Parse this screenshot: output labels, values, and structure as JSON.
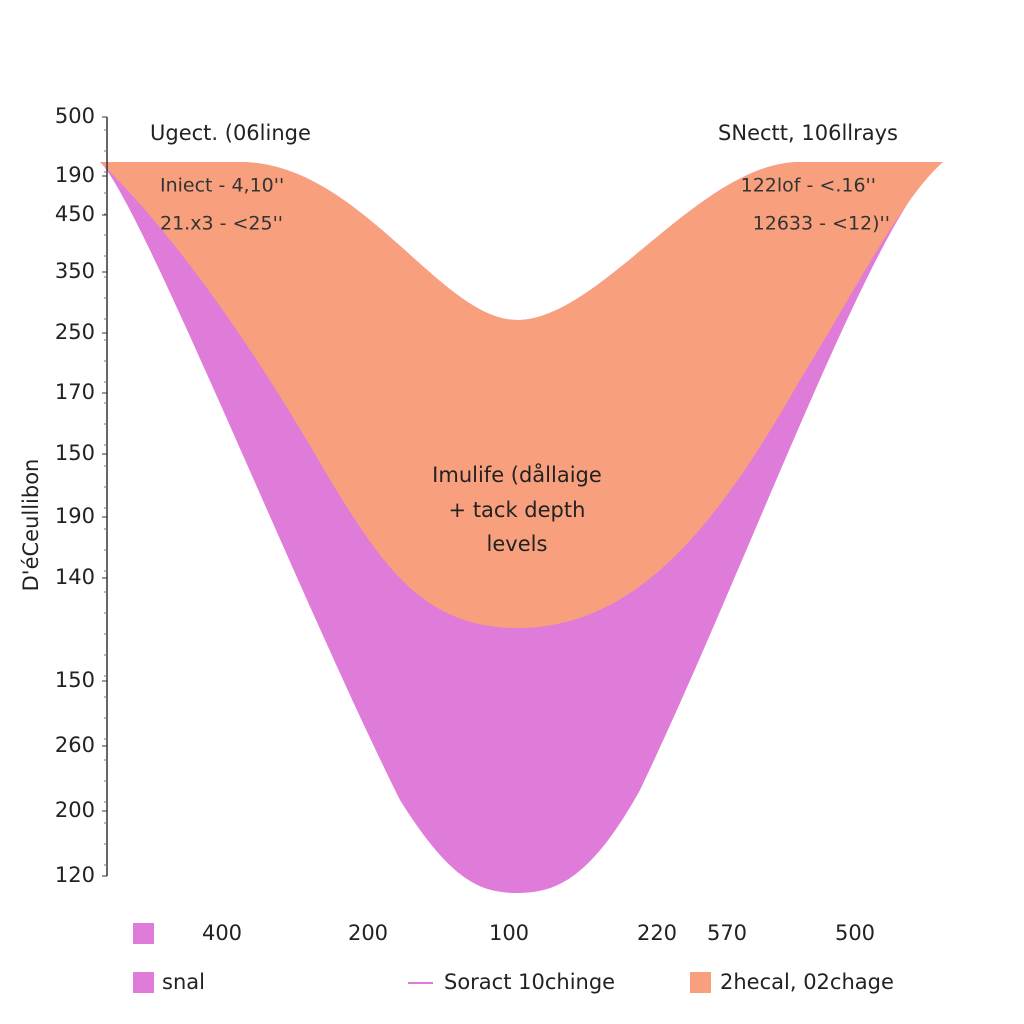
{
  "axis": {
    "title": "D'éCeullibon",
    "labels": [
      "500",
      "190",
      "450",
      "350",
      "250",
      "170",
      "150",
      "190",
      "140",
      "150",
      "260",
      "200",
      "120"
    ]
  },
  "annotations": {
    "left_title": "Ugect. (06linge",
    "right_title": "SNectt, 106llrays",
    "left_lines": [
      "Iniect - 4,10''",
      "21.x3 - <25''"
    ],
    "right_lines": [
      "122lof - <.16''",
      "12633 - <12)''"
    ],
    "center": [
      "Imulife (dållaige",
      "+ tack depth",
      "levels"
    ]
  },
  "bottom_labels": [
    "400",
    "200",
    "100",
    "220",
    "570",
    "500"
  ],
  "legend": [
    "snal",
    "Soract 10chinge",
    "2hecal, 02chage"
  ]
}
